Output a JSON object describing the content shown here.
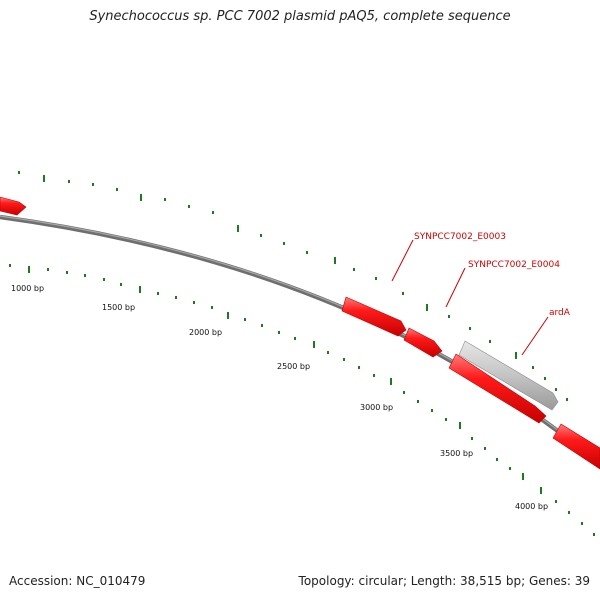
{
  "title": "Synechococcus sp. PCC 7002 plasmid pAQ5, complete sequence",
  "accession": "Accession: NC_010479",
  "summary": "Topology: circular; Length: 38,515 bp; Genes: 39",
  "colors": {
    "backbone": "#7a7a7a",
    "gene": "#ff0000",
    "gene_gray": "#c0c0c0",
    "tick": "#1f7a1f",
    "label_line": "#d40000",
    "label_text": "#d40000"
  },
  "ruler_labels": [
    "1000 bp",
    "1500 bp",
    "2000 bp",
    "2500 bp",
    "3000 bp",
    "3500 bp",
    "4000 bp"
  ],
  "gene_labels": [
    "SYNPCC7002_E0003",
    "SYNPCC7002_E0004",
    "ardA"
  ]
}
